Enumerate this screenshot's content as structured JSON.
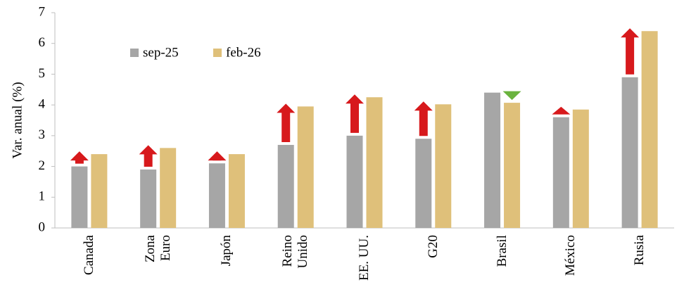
{
  "chart_data": {
    "type": "bar",
    "ylabel": "Var. anual (%)",
    "categories": [
      "Canada",
      "Zona Euro",
      "Japón",
      "Reino Unido",
      "EE. UU.",
      "G20",
      "Brasil",
      "México",
      "Rusia"
    ],
    "series": [
      {
        "name": "sep-25",
        "color": "#a6a6a6",
        "values": [
          2.0,
          1.9,
          2.1,
          2.7,
          3.0,
          2.9,
          4.4,
          3.6,
          4.9
        ]
      },
      {
        "name": "feb-26",
        "color": "#dfc07a",
        "values": [
          2.4,
          2.6,
          2.4,
          3.95,
          4.25,
          4.02,
          4.07,
          3.85,
          6.4
        ]
      }
    ],
    "ylim": [
      0,
      7
    ],
    "yticks": [
      0,
      1,
      2,
      3,
      4,
      5,
      6,
      7
    ],
    "grid": false,
    "up_color": "#d7191c",
    "down_color": "#6ab33e"
  }
}
